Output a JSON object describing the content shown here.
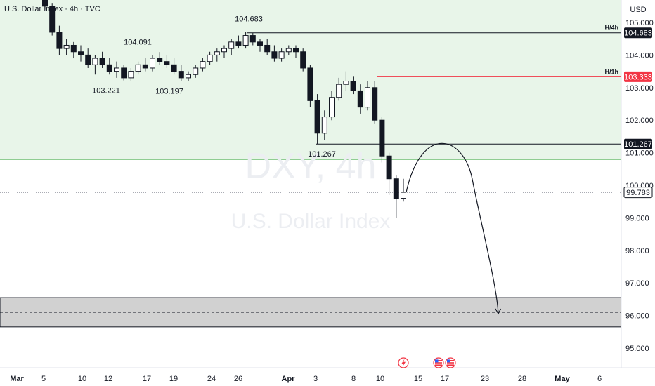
{
  "header": {
    "title": "U.S. Dollar Index · 4h · TVC",
    "currency": "USD"
  },
  "watermark": {
    "symbol": "DXY, 4h",
    "name": "U.S. Dollar Index"
  },
  "colors": {
    "candle": "#131722",
    "zone_fill": "#e8f5e9",
    "support_line": "#4caf50",
    "resistance_line": "#f23645",
    "target_zone": "#d1d1d1",
    "badge_dark": "#131722",
    "badge_red": "#f23645"
  },
  "chart_data": {
    "type": "candlestick",
    "symbol": "DXY",
    "timeframe": "4h",
    "y_ticks": [
      95.0,
      96.0,
      97.0,
      98.0,
      99.0,
      100.0,
      101.0,
      102.0,
      103.0,
      104.0,
      105.0
    ],
    "y_tick_labels": [
      "95.000",
      "96.000",
      "97.000",
      "98.000",
      "99.000",
      "100.000",
      "101.000",
      "102.000",
      "103.000",
      "104.000",
      "105.000"
    ],
    "ylim": [
      94.25,
      105.55
    ],
    "x_ticks": [
      "Mar",
      "5",
      "10",
      "12",
      "17",
      "19",
      "24",
      "26",
      "Apr",
      "3",
      "8",
      "10",
      "15",
      "17",
      "23",
      "28",
      "May",
      "6"
    ],
    "swing_labels": [
      {
        "text": "104.091",
        "price": 104.15
      },
      {
        "text": "104.683",
        "price": 104.683
      },
      {
        "text": "103.221",
        "price": 103.221
      },
      {
        "text": "103.197",
        "price": 103.197
      },
      {
        "text": "101.267",
        "price": 101.267
      }
    ],
    "levels": [
      {
        "name": "H/4h",
        "price": 104.683,
        "label": "104.683",
        "color": "#131722"
      },
      {
        "name": "H/1h",
        "price": 103.333,
        "label": "103.333",
        "color": "#f23645"
      },
      {
        "name": "",
        "price": 101.267,
        "label": "101.267",
        "color": "#131722"
      },
      {
        "name": "",
        "price": 99.783,
        "label": "99.783",
        "color": "#131722"
      }
    ],
    "support_zone": {
      "top": 105.55,
      "bottom": 100.8
    },
    "target_zone": {
      "top": 96.55,
      "bottom": 95.65,
      "mid": 96.1
    },
    "candles": [
      [
        105.7,
        105.9,
        105.4,
        105.5
      ],
      [
        105.5,
        105.6,
        104.6,
        104.7
      ],
      [
        104.7,
        104.9,
        104.0,
        104.2
      ],
      [
        104.2,
        104.5,
        104.0,
        104.3
      ],
      [
        104.3,
        104.4,
        103.9,
        104.1
      ],
      [
        104.1,
        104.3,
        103.8,
        104.0
      ],
      [
        104.0,
        104.2,
        103.6,
        103.7
      ],
      [
        103.7,
        104.0,
        103.4,
        103.9
      ],
      [
        103.9,
        104.1,
        103.6,
        103.7
      ],
      [
        103.7,
        103.9,
        103.4,
        103.5
      ],
      [
        103.5,
        103.8,
        103.3,
        103.6
      ],
      [
        103.6,
        103.7,
        103.221,
        103.3
      ],
      [
        103.3,
        103.6,
        103.2,
        103.5
      ],
      [
        103.5,
        103.8,
        103.4,
        103.7
      ],
      [
        103.7,
        103.9,
        103.5,
        103.6
      ],
      [
        103.6,
        104.0,
        103.5,
        103.9
      ],
      [
        103.9,
        104.091,
        103.7,
        103.8
      ],
      [
        103.8,
        104.0,
        103.6,
        103.7
      ],
      [
        103.7,
        103.9,
        103.4,
        103.5
      ],
      [
        103.5,
        103.7,
        103.2,
        103.3
      ],
      [
        103.3,
        103.5,
        103.197,
        103.4
      ],
      [
        103.4,
        103.7,
        103.3,
        103.6
      ],
      [
        103.6,
        103.9,
        103.5,
        103.8
      ],
      [
        103.8,
        104.1,
        103.7,
        104.0
      ],
      [
        104.0,
        104.2,
        103.8,
        104.1
      ],
      [
        104.1,
        104.3,
        103.9,
        104.2
      ],
      [
        104.2,
        104.5,
        104.0,
        104.4
      ],
      [
        104.4,
        104.6,
        104.2,
        104.3
      ],
      [
        104.3,
        104.7,
        104.2,
        104.6
      ],
      [
        104.6,
        104.683,
        104.3,
        104.4
      ],
      [
        104.4,
        104.5,
        104.1,
        104.3
      ],
      [
        104.3,
        104.5,
        104.0,
        104.1
      ],
      [
        104.1,
        104.3,
        103.8,
        103.9
      ],
      [
        103.9,
        104.2,
        103.8,
        104.1
      ],
      [
        104.1,
        104.3,
        104.0,
        104.2
      ],
      [
        104.2,
        104.3,
        103.9,
        104.1
      ],
      [
        104.1,
        104.2,
        103.5,
        103.6
      ],
      [
        103.6,
        103.7,
        102.4,
        102.6
      ],
      [
        102.6,
        102.8,
        101.267,
        101.6
      ],
      [
        101.6,
        102.3,
        101.4,
        102.1
      ],
      [
        102.1,
        102.9,
        102.0,
        102.7
      ],
      [
        102.7,
        103.3,
        102.6,
        103.1
      ],
      [
        103.1,
        103.5,
        102.9,
        103.2
      ],
      [
        103.2,
        103.333,
        102.8,
        102.9
      ],
      [
        102.9,
        103.1,
        102.2,
        102.4
      ],
      [
        102.4,
        103.2,
        102.3,
        103.0
      ],
      [
        103.0,
        103.2,
        101.9,
        102.0
      ],
      [
        102.0,
        102.1,
        100.7,
        100.9
      ],
      [
        100.9,
        101.0,
        99.7,
        100.2
      ],
      [
        100.2,
        100.3,
        99.0,
        99.6
      ],
      [
        99.6,
        100.2,
        99.5,
        99.783
      ]
    ],
    "projection": {
      "start": 99.783,
      "peak": 101.267,
      "end": 96.1
    }
  }
}
